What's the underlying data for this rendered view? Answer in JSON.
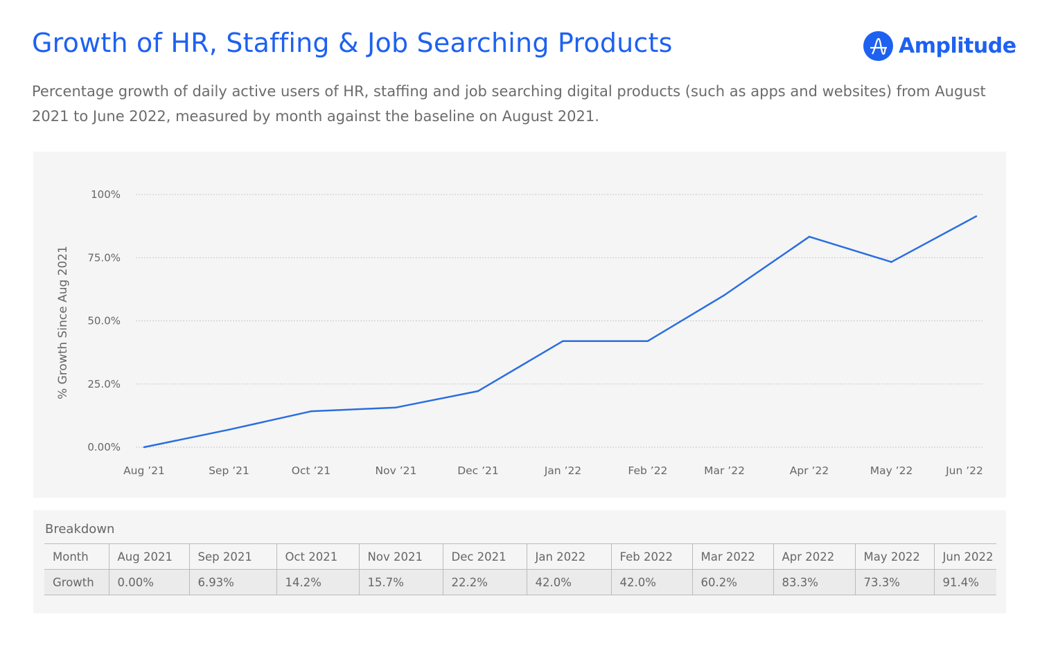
{
  "title": "Growth of HR, Staffing & Job Searching Products",
  "logo": "Amplitude",
  "subtitle": "Percentage growth of daily active users of HR, staffing and job searching digital products (such as apps and websites) from August 2021 to June 2022, measured by month against the baseline on August 2021.",
  "chart_data": {
    "type": "line",
    "ylabel": "% Growth Since Aug 2021",
    "ylim": [
      0,
      100
    ],
    "yticks": [
      {
        "v": 0,
        "label": "0.00%"
      },
      {
        "v": 25,
        "label": "25.0%"
      },
      {
        "v": 50,
        "label": "50.0%"
      },
      {
        "v": 75,
        "label": "75.0%"
      },
      {
        "v": 100,
        "label": "100%"
      }
    ],
    "x_day_offsets": [
      0,
      31,
      61,
      92,
      122,
      153,
      184,
      212,
      243,
      273,
      304
    ],
    "categories": [
      "Aug ’21",
      "Sep ’21",
      "Oct ’21",
      "Nov ’21",
      "Dec ’21",
      "Jan ’22",
      "Feb ’22",
      "Mar ’22",
      "Apr ’22",
      "May ’22",
      "Jun ’22"
    ],
    "series": [
      {
        "name": "Growth",
        "color": "#2a6ee0",
        "values": [
          0,
          6.93,
          14.2,
          15.7,
          22.2,
          42.0,
          42.0,
          60.2,
          83.3,
          73.3,
          91.4
        ]
      }
    ],
    "grid": true
  },
  "table": {
    "title": "Breakdown",
    "header": [
      "Month",
      "Aug 2021",
      "Sep 2021",
      "Oct 2021",
      "Nov 2021",
      "Dec 2021",
      "Jan 2022",
      "Feb 2022",
      "Mar 2022",
      "Apr 2022",
      "May 2022",
      "Jun 2022"
    ],
    "row": [
      "Growth",
      "0.00%",
      "6.93%",
      "14.2%",
      "15.7%",
      "22.2%",
      "42.0%",
      "42.0%",
      "60.2%",
      "83.3%",
      "73.3%",
      "91.4%"
    ]
  }
}
